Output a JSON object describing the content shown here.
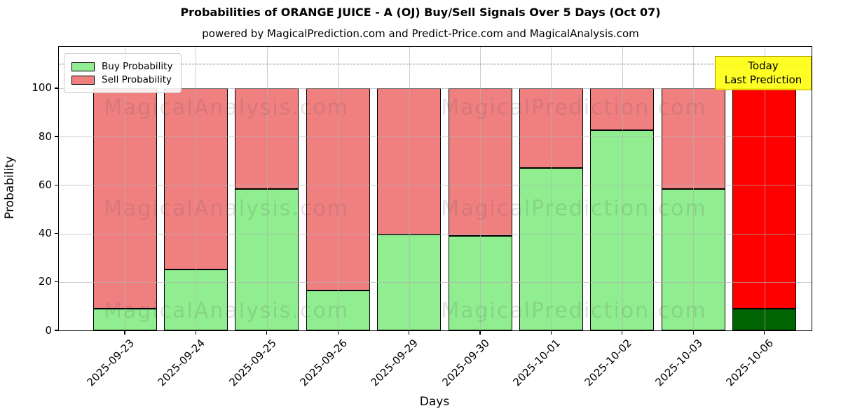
{
  "title": "Probabilities of ORANGE JUICE - A (OJ) Buy/Sell Signals Over 5 Days (Oct 07)",
  "subtitle": "powered by MagicalPrediction.com and Predict-Price.com and MagicalAnalysis.com",
  "ylabel": "Probability",
  "xlabel": "Days",
  "legend": [
    {
      "label": "Buy Probability",
      "color": "#90EE90"
    },
    {
      "label": "Sell Probability",
      "color": "#F08080"
    }
  ],
  "annotation": {
    "line1": "Today",
    "line2": "Last Prediction"
  },
  "watermarks": {
    "left": "MagicalAnalysis.com",
    "right": "MagicalPrediction.com"
  },
  "colors": {
    "buy": "#90EE90",
    "sell": "#F08080",
    "today_buy": "#006400",
    "today_sell": "#FF0000",
    "bar_edge": "#000000",
    "grid": "#b0b0b0",
    "threshold_line": "#7f7f7f",
    "annotation_bg": "#FFFF00",
    "annotation_border": "#B9A000"
  },
  "chart_data": {
    "type": "bar",
    "stacked": true,
    "title": "Probabilities of ORANGE JUICE - A (OJ) Buy/Sell Signals Over 5 Days (Oct 07)",
    "xlabel": "Days",
    "ylabel": "Probability",
    "categories": [
      "2025-09-23",
      "2025-09-24",
      "2025-09-25",
      "2025-09-26",
      "2025-09-29",
      "2025-09-30",
      "2025-10-01",
      "2025-10-02",
      "2025-10-03",
      "2025-10-06"
    ],
    "series": [
      {
        "name": "Buy Probability",
        "values": [
          9,
          25,
          58.5,
          16.5,
          39.5,
          39,
          67,
          82.5,
          58.5,
          9
        ]
      },
      {
        "name": "Sell Probability",
        "values": [
          91,
          75,
          41.5,
          83.5,
          60.5,
          61,
          33,
          17.5,
          41.5,
          91
        ]
      }
    ],
    "bar_totals": 100,
    "highlighted_last_bar": {
      "category": "2025-10-06",
      "buy_color": "#006400",
      "sell_color": "#FF0000",
      "label": "Today / Last Prediction"
    },
    "ylim": [
      0,
      117
    ],
    "yticks": [
      0,
      20,
      40,
      60,
      80,
      100
    ],
    "threshold_line_y": 110,
    "grid": true,
    "legend_position": "upper left"
  }
}
